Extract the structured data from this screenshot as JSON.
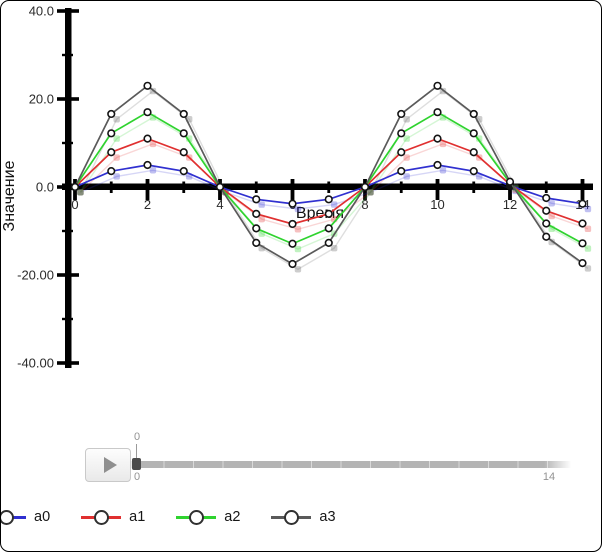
{
  "chart_data": {
    "type": "line",
    "title": "",
    "xlabel": "Время",
    "ylabel": "Значение",
    "xlim": [
      0,
      14.6
    ],
    "ylim": [
      -40,
      40
    ],
    "grid": false,
    "axis_color": "#000000",
    "tick_label_color": "#2b2b2b",
    "x_major_ticks": [
      {
        "v": 0,
        "label": "0"
      },
      {
        "v": 2,
        "label": "2"
      },
      {
        "v": 4,
        "label": "4"
      },
      {
        "v": 6,
        "label": "6"
      },
      {
        "v": 8,
        "label": "8"
      },
      {
        "v": 10,
        "label": "10"
      },
      {
        "v": 12,
        "label": "12"
      },
      {
        "v": 14,
        "label": "14"
      }
    ],
    "x_minor_ticks": [
      1,
      3,
      5,
      7,
      9,
      11,
      13
    ],
    "y_major_ticks": [
      {
        "v": 40,
        "label": "40.0"
      },
      {
        "v": 20,
        "label": "20.0"
      },
      {
        "v": 0,
        "label": "0.0"
      },
      {
        "v": -20,
        "label": "-20.00"
      },
      {
        "v": -40,
        "label": "-40.00"
      }
    ],
    "y_minor_ticks": [
      30,
      10,
      -10,
      -30
    ],
    "x": [
      0,
      1,
      2,
      3,
      4,
      5,
      6,
      7,
      8,
      9,
      10,
      11,
      12,
      13,
      14
    ],
    "series": [
      {
        "name": "a0",
        "color": "#3030d0",
        "amplitude": 5,
        "values": [
          0,
          3.6,
          5,
          3.6,
          0,
          -2.8,
          -3.8,
          -2.8,
          0,
          3.6,
          5,
          3.6,
          0.3,
          -2.5,
          -3.8
        ]
      },
      {
        "name": "a1",
        "color": "#e03030",
        "amplitude": 11,
        "values": [
          0,
          7.9,
          11,
          7.9,
          0,
          -6.1,
          -8.4,
          -6.1,
          0,
          7.9,
          11,
          7.9,
          0.6,
          -5.4,
          -8.3
        ]
      },
      {
        "name": "a2",
        "color": "#2fd32f",
        "amplitude": 17,
        "values": [
          0,
          12.2,
          17,
          12.2,
          0,
          -9.4,
          -12.9,
          -9.4,
          0,
          12.2,
          17,
          12.2,
          0.9,
          -8.3,
          -12.8
        ]
      },
      {
        "name": "a3",
        "color": "#5a5a5a",
        "amplitude": 23,
        "values": [
          0,
          16.6,
          23,
          16.6,
          0,
          -12.7,
          -17.5,
          -12.7,
          0,
          16.6,
          23,
          16.6,
          1.2,
          -11.3,
          -17.3
        ]
      }
    ],
    "trail": {
      "dx": 0.15,
      "dy": -1.2,
      "line_opacity": 0.2,
      "marker_opacity": 0.3
    },
    "legend_position": "bottom-left",
    "marker": {
      "fill": "#ffffff",
      "stroke": "#141414"
    }
  },
  "transport": {
    "play_icon": "play-triangle",
    "slider": {
      "value_label": "0",
      "min_label": "0",
      "max_label": "14"
    }
  }
}
